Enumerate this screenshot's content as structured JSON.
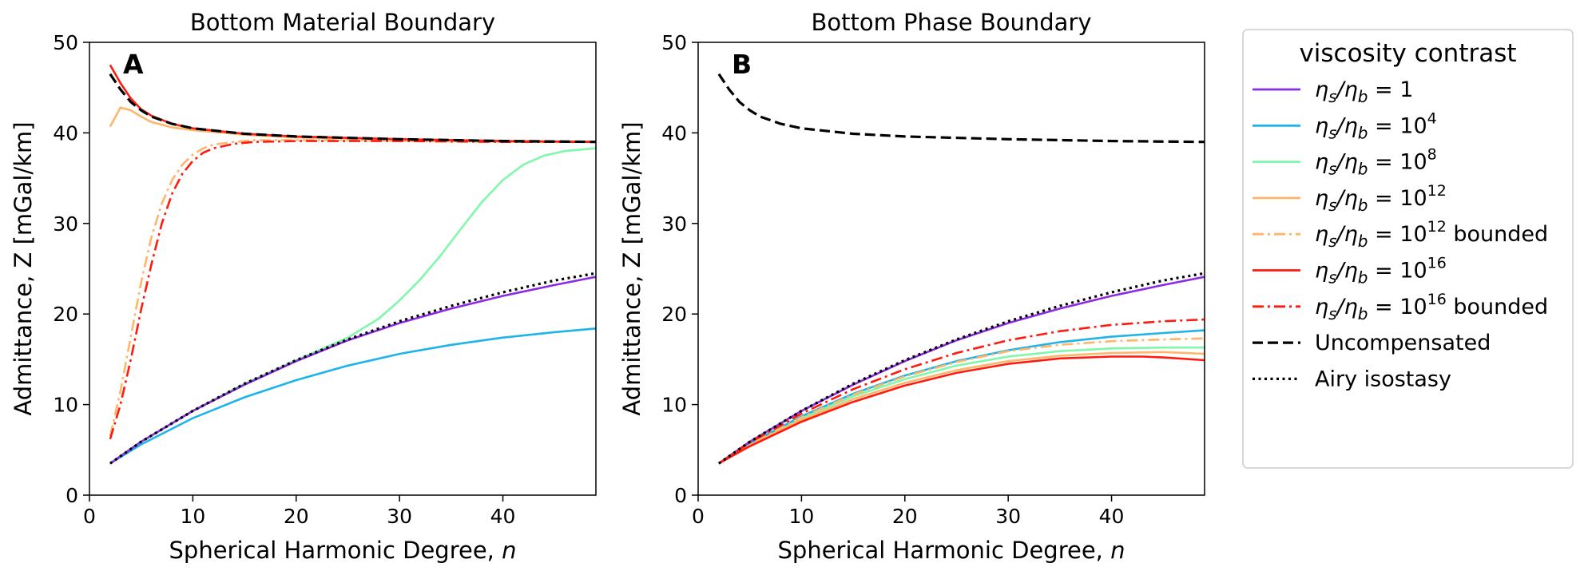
{
  "chart_data": [
    {
      "type": "line",
      "panel_letter": "A",
      "title": "Bottom Material Boundary",
      "xlabel_text": "Spherical Harmonic Degree, ",
      "xlabel_var": "n",
      "ylabel": "Admittance, Z [mGal/km]",
      "xlim": [
        0,
        49
      ],
      "ylim": [
        0,
        50
      ],
      "xticks": [
        0,
        10,
        20,
        30,
        40
      ],
      "yticks": [
        0,
        10,
        20,
        30,
        40,
        50
      ],
      "series": [
        {
          "key": "visc_1",
          "x": [
            2,
            5,
            10,
            15,
            20,
            25,
            30,
            35,
            40,
            45,
            49
          ],
          "y": [
            3.5,
            5.9,
            9.3,
            12.2,
            14.8,
            17.1,
            19.0,
            20.6,
            22.0,
            23.2,
            24.1
          ]
        },
        {
          "key": "visc_1e4",
          "x": [
            2,
            5,
            10,
            15,
            20,
            25,
            30,
            35,
            40,
            45,
            49
          ],
          "y": [
            3.5,
            5.6,
            8.5,
            10.8,
            12.7,
            14.3,
            15.6,
            16.6,
            17.4,
            18.0,
            18.4
          ]
        },
        {
          "key": "visc_1e8",
          "x": [
            2,
            5,
            10,
            15,
            20,
            22,
            25,
            28,
            30,
            32,
            34,
            36,
            38,
            40,
            42,
            44,
            46,
            49
          ],
          "y": [
            3.5,
            5.9,
            9.3,
            12.3,
            14.9,
            15.9,
            17.4,
            19.5,
            21.5,
            23.8,
            26.5,
            29.5,
            32.4,
            34.8,
            36.5,
            37.5,
            38.0,
            38.3
          ]
        },
        {
          "key": "visc_1e12",
          "x": [
            2,
            3,
            4,
            5,
            6,
            8,
            10,
            15,
            20,
            30,
            40,
            49
          ],
          "y": [
            40.7,
            42.8,
            42.5,
            41.8,
            41.2,
            40.6,
            40.3,
            39.8,
            39.5,
            39.3,
            39.1,
            39.0
          ]
        },
        {
          "key": "visc_1e12_bounded",
          "x": [
            2,
            3,
            4,
            5,
            6,
            7,
            8,
            9,
            10,
            11,
            12,
            14,
            16,
            20,
            25,
            30,
            40,
            49
          ],
          "y": [
            6.5,
            11.5,
            17.5,
            23.5,
            28.5,
            32.2,
            34.8,
            36.5,
            37.6,
            38.3,
            38.7,
            39.0,
            39.2,
            39.2,
            39.2,
            39.1,
            39.0,
            39.0
          ]
        },
        {
          "key": "visc_1e16",
          "x": [
            2,
            3,
            4,
            5,
            6,
            8,
            10,
            15,
            20,
            30,
            40,
            49
          ],
          "y": [
            47.5,
            45.5,
            43.8,
            42.6,
            41.9,
            41.0,
            40.5,
            39.9,
            39.6,
            39.3,
            39.1,
            39.0
          ]
        },
        {
          "key": "visc_1e16_bounded",
          "x": [
            2,
            3,
            4,
            5,
            6,
            7,
            8,
            9,
            10,
            11,
            12,
            14,
            16,
            20,
            25,
            30,
            40,
            49
          ],
          "y": [
            6.2,
            10.0,
            15.0,
            20.5,
            25.5,
            30.0,
            33.3,
            35.5,
            36.9,
            37.8,
            38.3,
            38.8,
            39.0,
            39.1,
            39.1,
            39.1,
            39.0,
            39.0
          ]
        },
        {
          "key": "uncompensated",
          "x": [
            2,
            3,
            4,
            5,
            6,
            8,
            10,
            15,
            20,
            30,
            40,
            49
          ],
          "y": [
            46.5,
            44.8,
            43.4,
            42.5,
            41.8,
            41.0,
            40.5,
            39.9,
            39.6,
            39.3,
            39.1,
            39.0
          ]
        },
        {
          "key": "airy",
          "x": [
            2,
            5,
            10,
            15,
            20,
            25,
            30,
            35,
            40,
            45,
            49
          ],
          "y": [
            3.5,
            5.9,
            9.3,
            12.3,
            14.9,
            17.2,
            19.2,
            20.9,
            22.4,
            23.7,
            24.5
          ]
        }
      ]
    },
    {
      "type": "line",
      "panel_letter": "B",
      "title": "Bottom Phase Boundary",
      "xlabel_text": "Spherical Harmonic Degree, ",
      "xlabel_var": "n",
      "ylabel": "Admittance, Z [mGal/km]",
      "xlim": [
        0,
        49
      ],
      "ylim": [
        0,
        50
      ],
      "xticks": [
        0,
        10,
        20,
        30,
        40
      ],
      "yticks": [
        0,
        10,
        20,
        30,
        40,
        50
      ],
      "series": [
        {
          "key": "visc_1",
          "x": [
            2,
            5,
            10,
            15,
            20,
            25,
            30,
            35,
            40,
            45,
            49
          ],
          "y": [
            3.5,
            5.9,
            9.3,
            12.2,
            14.8,
            17.1,
            19.0,
            20.6,
            22.0,
            23.2,
            24.1
          ]
        },
        {
          "key": "visc_1e4",
          "x": [
            2,
            5,
            10,
            15,
            20,
            25,
            30,
            35,
            40,
            45,
            49
          ],
          "y": [
            3.5,
            5.7,
            8.7,
            11.2,
            13.2,
            14.8,
            16.0,
            16.9,
            17.5,
            17.9,
            18.2
          ]
        },
        {
          "key": "visc_1e8",
          "x": [
            2,
            5,
            10,
            15,
            20,
            25,
            30,
            35,
            40,
            45,
            49
          ],
          "y": [
            3.5,
            5.6,
            8.5,
            10.9,
            12.8,
            14.3,
            15.3,
            15.9,
            16.2,
            16.3,
            16.3
          ]
        },
        {
          "key": "visc_1e12",
          "x": [
            2,
            5,
            10,
            15,
            20,
            25,
            30,
            35,
            40,
            45,
            49
          ],
          "y": [
            3.5,
            5.5,
            8.3,
            10.6,
            12.4,
            13.8,
            14.8,
            15.4,
            15.7,
            15.8,
            15.6
          ]
        },
        {
          "key": "visc_1e12_bounded",
          "x": [
            2,
            5,
            10,
            15,
            20,
            25,
            30,
            35,
            40,
            45,
            49
          ],
          "y": [
            3.5,
            5.6,
            8.6,
            11.1,
            13.1,
            14.7,
            15.9,
            16.6,
            17.0,
            17.2,
            17.3
          ]
        },
        {
          "key": "visc_1e16",
          "x": [
            2,
            5,
            10,
            15,
            20,
            25,
            30,
            35,
            40,
            43,
            45,
            49
          ],
          "y": [
            3.5,
            5.4,
            8.1,
            10.3,
            12.1,
            13.5,
            14.5,
            15.1,
            15.3,
            15.3,
            15.2,
            14.9
          ]
        },
        {
          "key": "visc_1e16_bounded",
          "x": [
            2,
            5,
            10,
            15,
            20,
            25,
            30,
            35,
            40,
            45,
            49
          ],
          "y": [
            3.5,
            5.8,
            9.0,
            11.7,
            13.9,
            15.7,
            17.1,
            18.1,
            18.8,
            19.2,
            19.4
          ]
        },
        {
          "key": "uncompensated",
          "x": [
            2,
            3,
            4,
            5,
            6,
            8,
            10,
            15,
            20,
            30,
            40,
            49
          ],
          "y": [
            46.5,
            44.8,
            43.4,
            42.5,
            41.8,
            41.0,
            40.5,
            39.9,
            39.6,
            39.3,
            39.1,
            39.0
          ]
        },
        {
          "key": "airy",
          "x": [
            2,
            5,
            10,
            15,
            20,
            25,
            30,
            35,
            40,
            45,
            49
          ],
          "y": [
            3.5,
            5.9,
            9.3,
            12.3,
            14.9,
            17.2,
            19.2,
            20.9,
            22.4,
            23.7,
            24.5
          ]
        }
      ]
    }
  ],
  "legend": {
    "title": "viscosity contrast",
    "entries": [
      {
        "key": "visc_1",
        "prefix": "η",
        "s_sub": "s",
        "mid": "/η",
        "b_sub": "b",
        "eq": " = 1",
        "base": "",
        "exp": "",
        "suffix": "",
        "color": "#8b2be2",
        "dash": "solid"
      },
      {
        "key": "visc_1e4",
        "prefix": "η",
        "s_sub": "s",
        "mid": "/η",
        "b_sub": "b",
        "eq": " = ",
        "base": "10",
        "exp": "4",
        "suffix": "",
        "color": "#1eb4ea",
        "dash": "solid"
      },
      {
        "key": "visc_1e8",
        "prefix": "η",
        "s_sub": "s",
        "mid": "/η",
        "b_sub": "b",
        "eq": " = ",
        "base": "10",
        "exp": "8",
        "suffix": "",
        "color": "#80f7a9",
        "dash": "solid"
      },
      {
        "key": "visc_1e12",
        "prefix": "η",
        "s_sub": "s",
        "mid": "/η",
        "b_sub": "b",
        "eq": " = ",
        "base": "10",
        "exp": "12",
        "suffix": "",
        "color": "#ffb56a",
        "dash": "solid"
      },
      {
        "key": "visc_1e12_bounded",
        "prefix": "η",
        "s_sub": "s",
        "mid": "/η",
        "b_sub": "b",
        "eq": " = ",
        "base": "10",
        "exp": "12",
        "suffix": " bounded",
        "color": "#ffb56a",
        "dash": "dashdot"
      },
      {
        "key": "visc_1e16",
        "prefix": "η",
        "s_sub": "s",
        "mid": "/η",
        "b_sub": "b",
        "eq": " = ",
        "base": "10",
        "exp": "16",
        "suffix": "",
        "color": "#ff1a0e",
        "dash": "solid"
      },
      {
        "key": "visc_1e16_bounded",
        "prefix": "η",
        "s_sub": "s",
        "mid": "/η",
        "b_sub": "b",
        "eq": " = ",
        "base": "10",
        "exp": "16",
        "suffix": " bounded",
        "color": "#ff1a0e",
        "dash": "dashdot"
      },
      {
        "key": "uncompensated",
        "label": "Uncompensated",
        "color": "#000000",
        "dash": "dashed"
      },
      {
        "key": "airy",
        "label": "Airy isostasy",
        "color": "#000000",
        "dash": "dotted"
      }
    ]
  }
}
